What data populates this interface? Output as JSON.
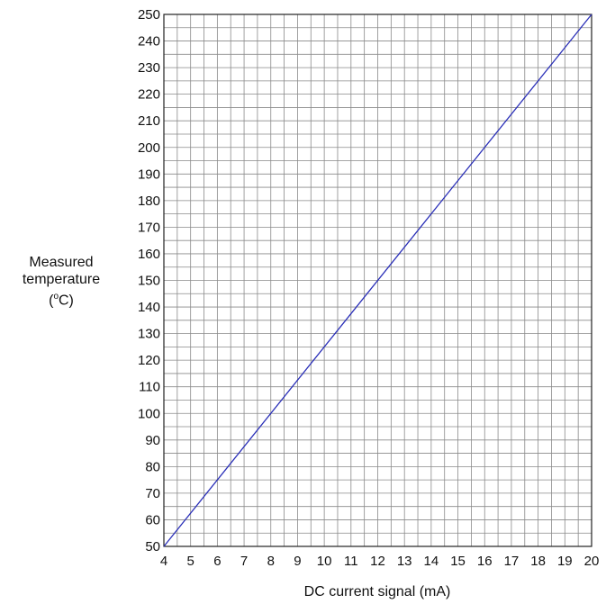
{
  "chart_data": {
    "type": "line",
    "xlabel": "DC current signal (mA)",
    "ylabel": "Measured temperature (oC)",
    "ylabel_lines": [
      "Measured",
      "temperature",
      "(oC)"
    ],
    "xlim": [
      4,
      20
    ],
    "ylim": [
      50,
      250
    ],
    "x_ticks": [
      4,
      5,
      6,
      7,
      8,
      9,
      10,
      11,
      12,
      13,
      14,
      15,
      16,
      17,
      18,
      19,
      20
    ],
    "y_ticks": [
      50,
      60,
      70,
      80,
      90,
      100,
      110,
      120,
      130,
      140,
      150,
      160,
      170,
      180,
      190,
      200,
      210,
      220,
      230,
      240,
      250
    ],
    "minor_x_step": 0.5,
    "minor_y_step": 5,
    "grid": true,
    "series": [
      {
        "x": [
          4,
          20
        ],
        "y": [
          50,
          250
        ],
        "color": "#2a2fb8"
      }
    ]
  }
}
